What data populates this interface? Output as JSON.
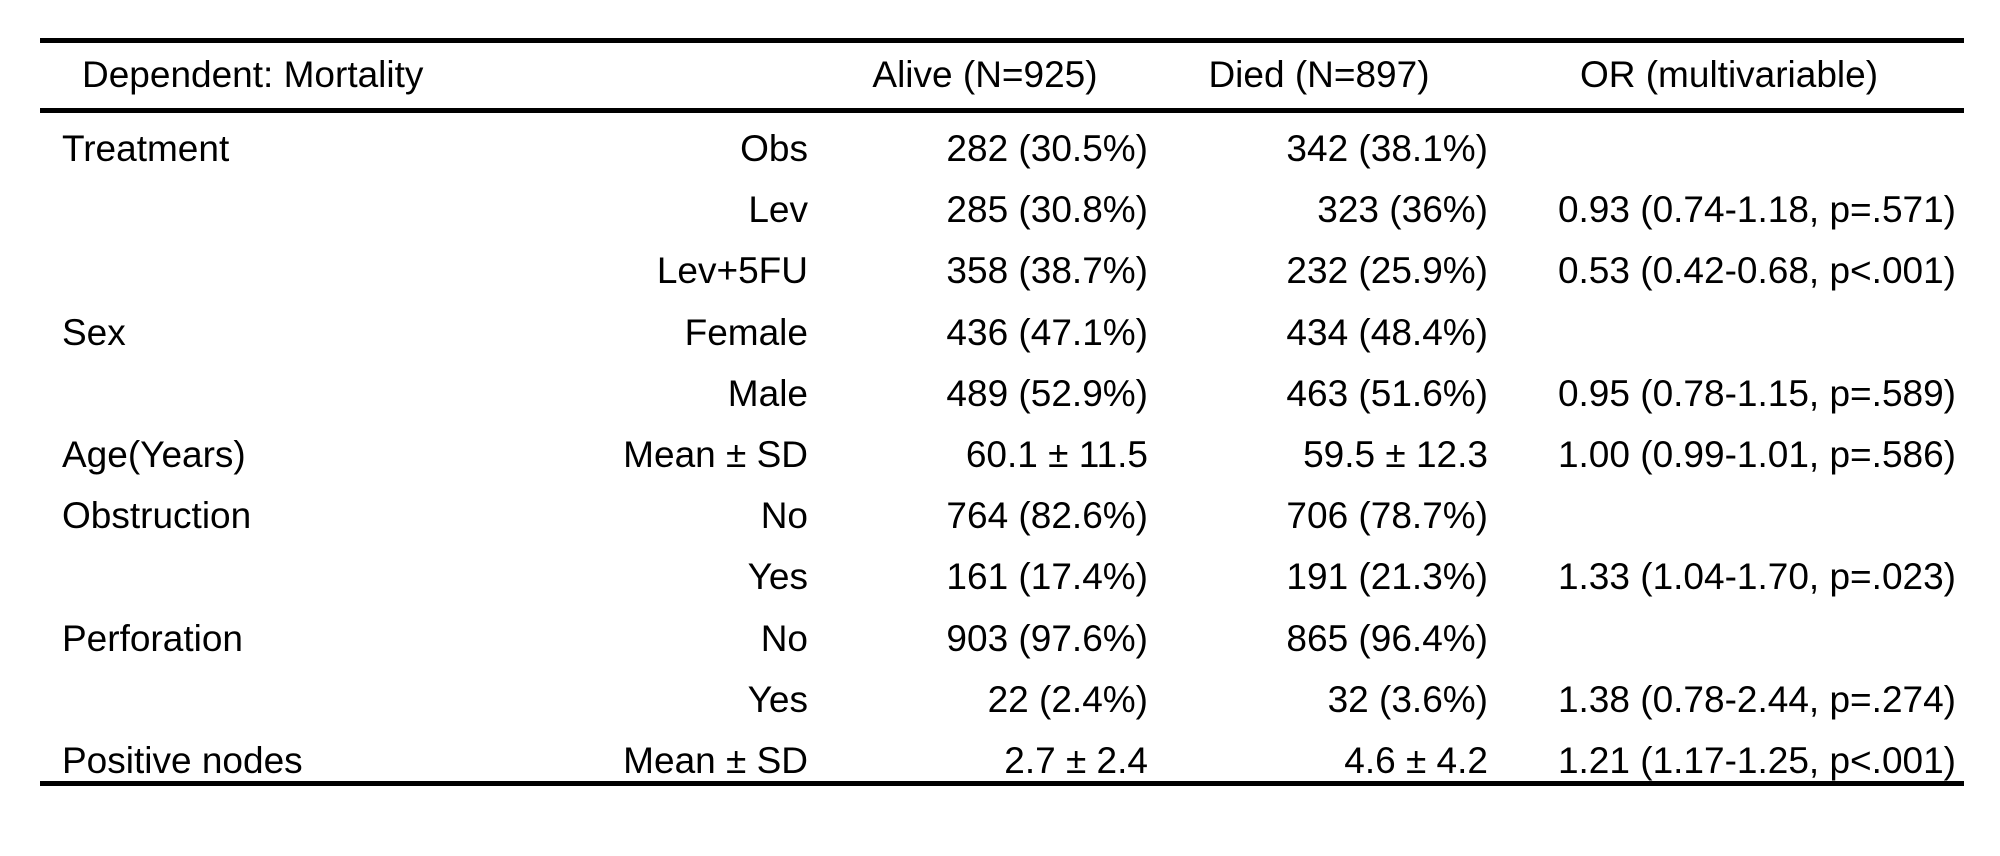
{
  "table": {
    "header": {
      "dependent": "Dependent: Mortality",
      "level": "",
      "alive": "Alive (N=925)",
      "died": "Died (N=897)",
      "or": "OR (multivariable)"
    },
    "rows": [
      {
        "label": "Treatment",
        "level": "Obs",
        "alive": "282 (30.5%)",
        "died": "342 (38.1%)",
        "or": ""
      },
      {
        "label": "",
        "level": "Lev",
        "alive": "285 (30.8%)",
        "died": "323 (36%)",
        "or": "0.93 (0.74-1.18, p=.571)"
      },
      {
        "label": "",
        "level": "Lev+5FU",
        "alive": "358 (38.7%)",
        "died": "232 (25.9%)",
        "or": "0.53 (0.42-0.68, p<.001)"
      },
      {
        "label": "Sex",
        "level": "Female",
        "alive": "436 (47.1%)",
        "died": "434 (48.4%)",
        "or": ""
      },
      {
        "label": "",
        "level": "Male",
        "alive": "489 (52.9%)",
        "died": "463 (51.6%)",
        "or": "0.95 (0.78-1.15, p=.589)"
      },
      {
        "label": "Age(Years)",
        "level": "Mean ± SD",
        "alive": "60.1 ± 11.5",
        "died": "59.5 ± 12.3",
        "or": "1.00 (0.99-1.01, p=.586)"
      },
      {
        "label": "Obstruction",
        "level": "No",
        "alive": "764 (82.6%)",
        "died": "706 (78.7%)",
        "or": ""
      },
      {
        "label": "",
        "level": "Yes",
        "alive": "161 (17.4%)",
        "died": "191 (21.3%)",
        "or": "1.33 (1.04-1.70, p=.023)"
      },
      {
        "label": "Perforation",
        "level": "No",
        "alive": "903 (97.6%)",
        "died": "865 (96.4%)",
        "or": ""
      },
      {
        "label": "",
        "level": "Yes",
        "alive": "22 (2.4%)",
        "died": "32 (3.6%)",
        "or": "1.38 (0.78-2.44, p=.274)"
      },
      {
        "label": "Positive nodes",
        "level": "Mean ± SD",
        "alive": "2.7 ± 2.4",
        "died": "4.6 ± 4.2",
        "or": "1.21 (1.17-1.25, p<.001)"
      }
    ]
  }
}
